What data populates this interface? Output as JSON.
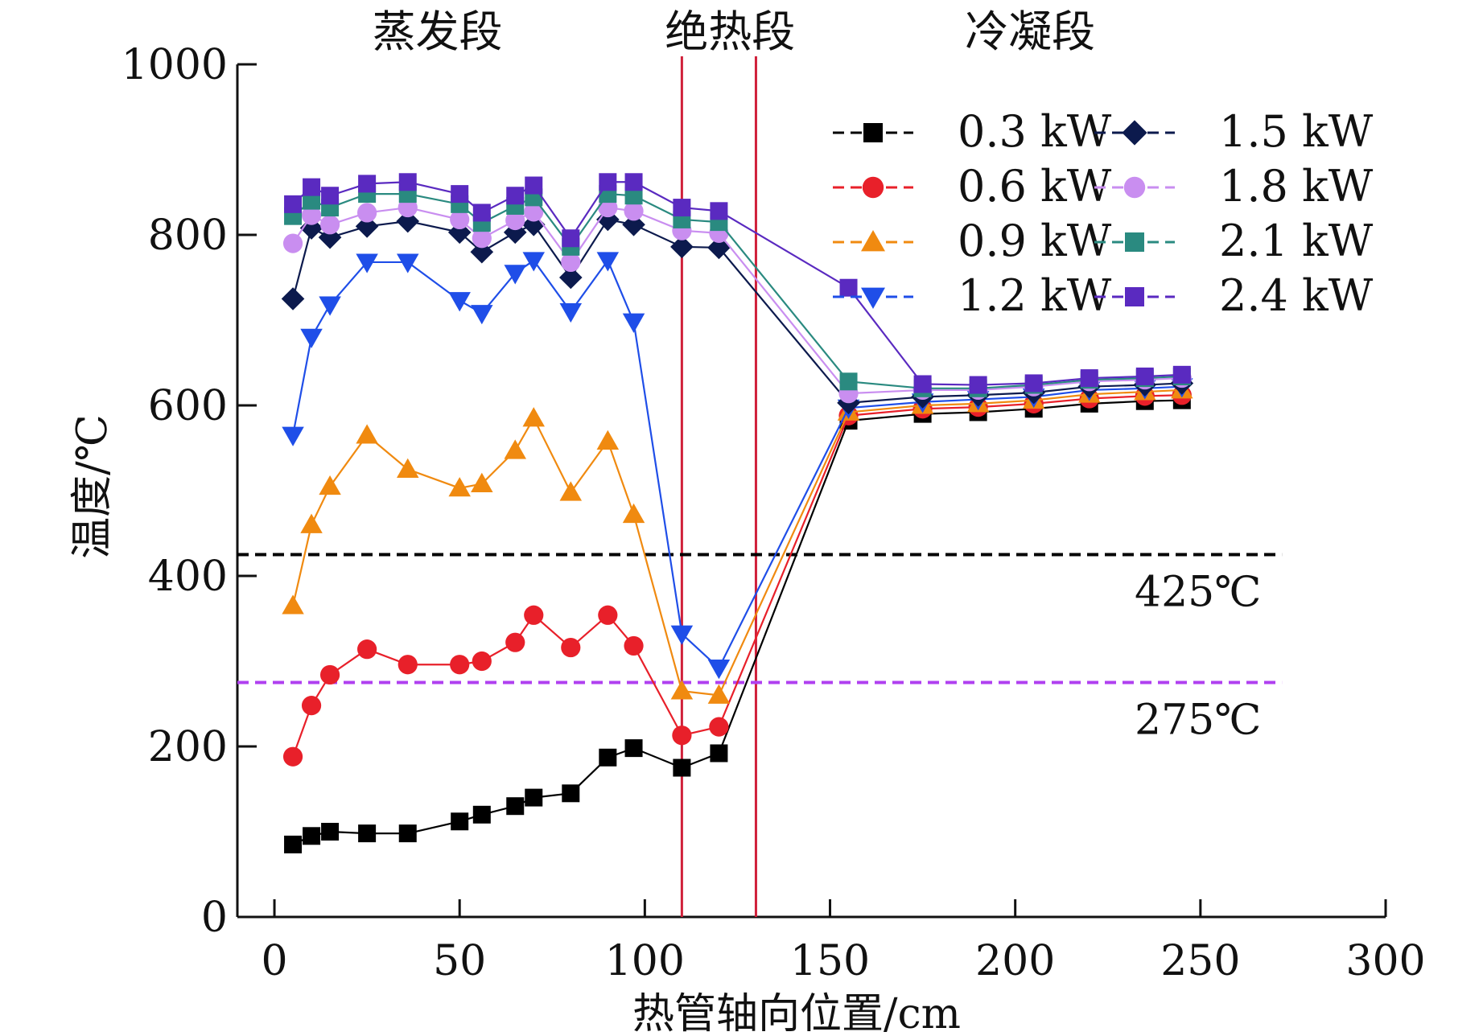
{
  "chart_data": {
    "type": "line",
    "title": "",
    "xlabel": "热管轴向位置/cm",
    "ylabel": "温度/℃",
    "xlim": [
      -10,
      300
    ],
    "ylim": [
      0,
      1000
    ],
    "x_ticks": [
      0,
      50,
      100,
      150,
      200,
      250,
      300
    ],
    "y_ticks": [
      0,
      200,
      400,
      600,
      800,
      1000
    ],
    "grid": false,
    "legend_position": "top-right",
    "region_labels": [
      {
        "text": "蒸发段",
        "x": 44
      },
      {
        "text": "绝热段",
        "x": 123
      },
      {
        "text": "冷凝段",
        "x": 204
      }
    ],
    "boundaries": [
      110,
      130
    ],
    "reference_lines": [
      {
        "value": 425,
        "label": "425℃",
        "color": "#000000"
      },
      {
        "value": 275,
        "label": "275℃",
        "color": "#b040f0"
      }
    ],
    "x": [
      5,
      10,
      15,
      25,
      36,
      50,
      56,
      65,
      70,
      80,
      90,
      97,
      110,
      120,
      155,
      175,
      190,
      205,
      220,
      235,
      245
    ],
    "series": [
      {
        "name": "0.3 kW",
        "color": "#000000",
        "marker": "square",
        "values": [
          85,
          95,
          100,
          98,
          98,
          112,
          120,
          130,
          140,
          145,
          187,
          198,
          175,
          192,
          582,
          590,
          592,
          596,
          602,
          605,
          606
        ]
      },
      {
        "name": "0.6 kW",
        "color": "#e8202a",
        "marker": "circle",
        "values": [
          188,
          248,
          284,
          314,
          296,
          296,
          300,
          322,
          354,
          316,
          354,
          318,
          213,
          223,
          588,
          596,
          598,
          602,
          608,
          611,
          612
        ]
      },
      {
        "name": "0.9 kW",
        "color": "#f08a10",
        "marker": "triangle-up",
        "values": [
          365,
          460,
          505,
          565,
          525,
          503,
          508,
          547,
          585,
          498,
          558,
          472,
          265,
          260,
          592,
          600,
          602,
          606,
          613,
          616,
          618
        ]
      },
      {
        "name": "1.2 kW",
        "color": "#1f4ee8",
        "marker": "triangle-down",
        "values": [
          565,
          680,
          718,
          768,
          768,
          723,
          708,
          755,
          770,
          710,
          770,
          698,
          332,
          292,
          597,
          604,
          607,
          610,
          618,
          620,
          622
        ]
      },
      {
        "name": "1.5 kW",
        "color": "#0c1a4d",
        "marker": "diamond",
        "values": [
          725,
          808,
          797,
          810,
          816,
          803,
          780,
          803,
          812,
          750,
          818,
          812,
          786,
          785,
          603,
          610,
          612,
          615,
          622,
          624,
          626
        ]
      },
      {
        "name": "1.8 kW",
        "color": "#c98ef0",
        "marker": "circle",
        "values": [
          790,
          823,
          812,
          826,
          832,
          818,
          796,
          817,
          827,
          768,
          832,
          828,
          805,
          802,
          614,
          618,
          618,
          622,
          628,
          630,
          632
        ]
      },
      {
        "name": "2.1 kW",
        "color": "#2a8a80",
        "marker": "square",
        "values": [
          822,
          840,
          832,
          848,
          848,
          836,
          814,
          834,
          844,
          786,
          848,
          846,
          818,
          815,
          628,
          620,
          620,
          624,
          630,
          632,
          634
        ]
      },
      {
        "name": "2.4 kW",
        "color": "#5a2ac0",
        "marker": "square",
        "values": [
          836,
          856,
          846,
          860,
          862,
          848,
          826,
          846,
          858,
          796,
          862,
          862,
          832,
          828,
          738,
          625,
          624,
          626,
          632,
          634,
          636
        ]
      }
    ]
  }
}
